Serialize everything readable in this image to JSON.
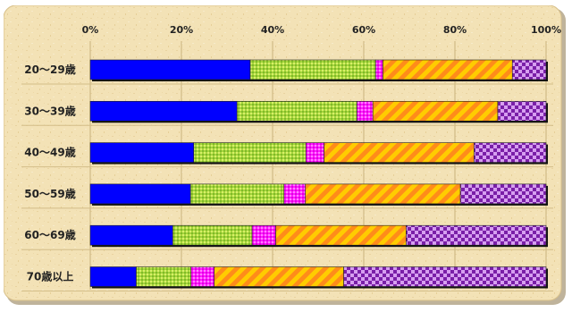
{
  "chart_data": {
    "type": "bar",
    "orientation": "horizontal",
    "stacked": true,
    "percent_stacked": true,
    "categories": [
      "20〜29歳",
      "30〜39歳",
      "40〜49歳",
      "50〜59歳",
      "60〜69歳",
      "70歳以上"
    ],
    "x_ticks": [
      "0%",
      "20%",
      "40%",
      "60%",
      "80%",
      "100%"
    ],
    "xlim": [
      0,
      100
    ],
    "grid": true,
    "legend": "none",
    "series": [
      {
        "values": [
          35.1,
          32.2,
          22.7,
          22.0,
          18.1,
          10.1
        ],
        "color": "#0000ff",
        "pattern": "solid"
      },
      {
        "values": [
          27.5,
          26.3,
          24.6,
          20.5,
          17.4,
          12.0
        ],
        "color": "#a6d63a",
        "pattern": "dots"
      },
      {
        "values": [
          1.6,
          3.5,
          4.0,
          4.7,
          5.2,
          5.1
        ],
        "color": "#ff1aff",
        "pattern": "dots"
      },
      {
        "values": [
          28.4,
          27.4,
          32.9,
          34.0,
          28.6,
          28.4
        ],
        "color": "#ffcc00",
        "pattern": "diagonal-stripes"
      },
      {
        "values": [
          7.4,
          10.6,
          15.8,
          18.8,
          30.7,
          44.4
        ],
        "color": "#9933cc",
        "pattern": "checkerboard"
      }
    ]
  }
}
